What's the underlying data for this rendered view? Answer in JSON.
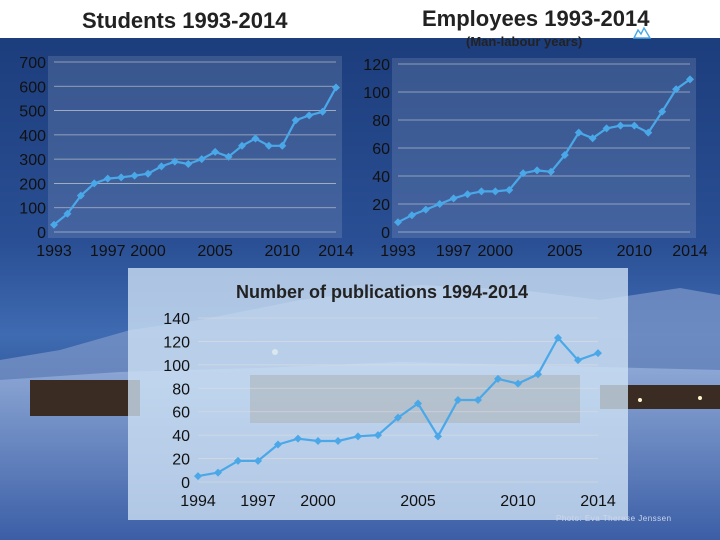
{
  "header": {
    "students_title": "Students 1993-2014",
    "employees_title": "Employees 1993-2014",
    "employees_subtitle": "(Man-labour years)"
  },
  "photo_credit": "Photo: Eva Therese Jenssen",
  "colors": {
    "series": "#4aa8e8",
    "axis_text": "#111111",
    "gridline": "#dddddd",
    "panel": "#cfe3f5",
    "title_text": "#222222"
  },
  "chart_data": [
    {
      "id": "students",
      "type": "line",
      "title": "Students 1993-2014",
      "xlabel": "",
      "ylabel": "",
      "x": [
        1993,
        1994,
        1995,
        1996,
        1997,
        1998,
        1999,
        2000,
        2001,
        2002,
        2003,
        2004,
        2005,
        2006,
        2007,
        2008,
        2009,
        2010,
        2011,
        2012,
        2013,
        2014
      ],
      "values": [
        30,
        75,
        150,
        200,
        220,
        225,
        232,
        240,
        270,
        290,
        280,
        300,
        330,
        310,
        355,
        385,
        355,
        355,
        460,
        480,
        495,
        595
      ],
      "x_tick_labels": [
        "1993",
        "1997",
        "2000",
        "2005",
        "2010",
        "2014"
      ],
      "x_tick_positions": [
        1993,
        1997,
        2000,
        2005,
        2010,
        2014
      ],
      "ylim": [
        0,
        700
      ],
      "y_ticks": [
        0,
        100,
        200,
        300,
        400,
        500,
        600,
        700
      ],
      "grid": true
    },
    {
      "id": "employees",
      "type": "line",
      "title": "Employees 1993-2014",
      "subtitle": "(Man-labour years)",
      "xlabel": "",
      "ylabel": "",
      "x": [
        1993,
        1994,
        1995,
        1996,
        1997,
        1998,
        1999,
        2000,
        2001,
        2002,
        2003,
        2004,
        2005,
        2006,
        2007,
        2008,
        2009,
        2010,
        2011,
        2012,
        2013,
        2014
      ],
      "values": [
        7,
        12,
        16,
        20,
        24,
        27,
        29,
        29,
        30,
        42,
        44,
        43,
        55,
        71,
        67,
        74,
        76,
        76,
        71,
        86,
        102,
        109
      ],
      "x_tick_labels": [
        "1993",
        "1997",
        "2000",
        "2005",
        "2010",
        "2014"
      ],
      "x_tick_positions": [
        1993,
        1997,
        2000,
        2005,
        2010,
        2014
      ],
      "ylim": [
        0,
        120
      ],
      "y_ticks": [
        0,
        20,
        40,
        60,
        80,
        100,
        120
      ],
      "grid": true
    },
    {
      "id": "publications",
      "type": "line",
      "title": "Number of publications 1994-2014",
      "xlabel": "",
      "ylabel": "",
      "x": [
        1994,
        1995,
        1996,
        1997,
        1998,
        1999,
        2000,
        2001,
        2002,
        2003,
        2004,
        2005,
        2006,
        2007,
        2008,
        2009,
        2010,
        2011,
        2012,
        2013,
        2014
      ],
      "values": [
        5,
        8,
        18,
        18,
        32,
        37,
        35,
        35,
        39,
        40,
        55,
        67,
        39,
        70,
        70,
        88,
        84,
        92,
        123,
        104,
        110
      ],
      "x_tick_labels": [
        "1994",
        "1997",
        "2000",
        "2005",
        "2010",
        "2014"
      ],
      "x_tick_positions": [
        1994,
        1997,
        2000,
        2005,
        2010,
        2014
      ],
      "ylim": [
        0,
        140
      ],
      "y_ticks": [
        0,
        20,
        40,
        60,
        80,
        100,
        120,
        140
      ],
      "grid": true
    }
  ]
}
